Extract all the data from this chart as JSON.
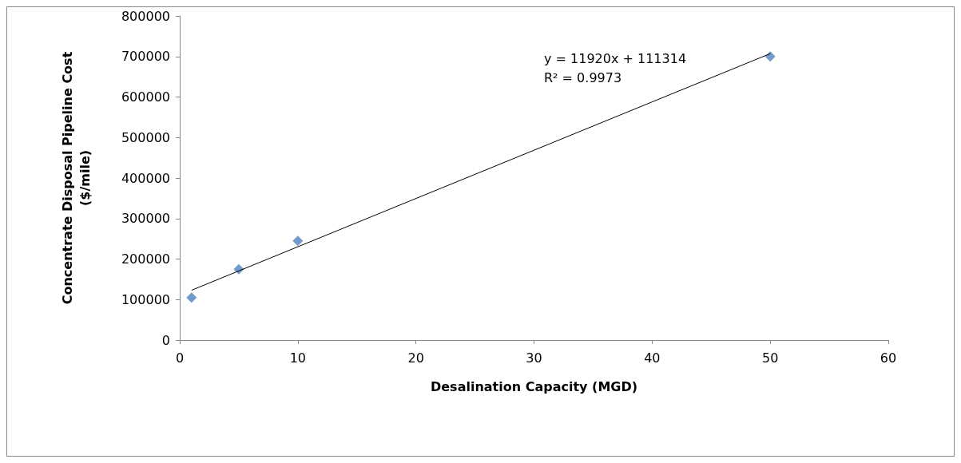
{
  "chart_data": {
    "type": "scatter",
    "xlabel": "Desalination Capacity (MGD)",
    "ylabel": "Concentrate Disposal Pipeline Cost\n($/mile)",
    "annotations": [
      "y = 11920x + 111314",
      "R² = 0.9973"
    ],
    "series": [
      {
        "color": "#4f81bd",
        "x": [
          1,
          5,
          10,
          50
        ],
        "values": [
          105000,
          175000,
          245000,
          700000
        ],
        "marker": "diamond"
      },
      {
        "type": "line",
        "color": "#000000",
        "x": [
          1,
          50
        ],
        "values": [
          123000,
          707000
        ],
        "marker": "none",
        "line_style": "solid"
      }
    ],
    "xlim": [
      0,
      60
    ],
    "xticks": [
      0,
      10,
      20,
      30,
      40,
      50,
      60
    ],
    "ylim": [
      0,
      800000
    ],
    "yticks": [
      0,
      100000,
      200000,
      300000,
      400000,
      500000,
      600000,
      700000,
      800000
    ]
  }
}
